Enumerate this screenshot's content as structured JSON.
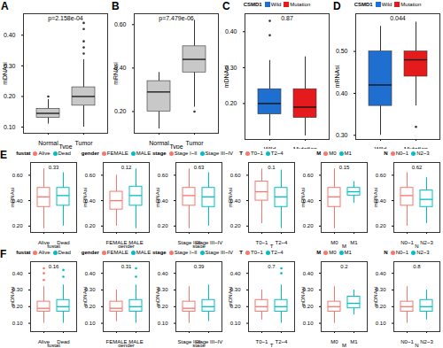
{
  "chart_data": [
    {
      "panel": "A",
      "type": "boxplot",
      "x_label": "Type",
      "y_label": "mDNAsi",
      "categories": [
        "Normal",
        "Tumor"
      ],
      "colors": [
        "#C8C8C8",
        "#C8C8C8"
      ],
      "p_label": "p=2.158e-04",
      "ylim": [
        0.08,
        0.47
      ],
      "yticks": [
        0.1,
        0.2,
        0.3,
        0.4
      ],
      "boxes": [
        {
          "min": 0.11,
          "q1": 0.13,
          "median": 0.145,
          "q3": 0.16,
          "max": 0.19,
          "outliers": [
            0.2
          ]
        },
        {
          "min": 0.1,
          "q1": 0.17,
          "median": 0.2,
          "q3": 0.23,
          "max": 0.32,
          "outliers": [
            0.34,
            0.36,
            0.38,
            0.42,
            0.44
          ]
        }
      ]
    },
    {
      "panel": "B",
      "type": "boxplot",
      "x_label": "Type",
      "y_label": "mRNAsi",
      "categories": [
        "Normal",
        "Tumor"
      ],
      "colors": [
        "#C8C8C8",
        "#C8C8C8"
      ],
      "p_label": "p=7.479e-06",
      "ylim": [
        0.1,
        0.65
      ],
      "yticks": [
        0.2,
        0.4,
        0.6
      ],
      "boxes": [
        {
          "min": 0.12,
          "q1": 0.2,
          "median": 0.29,
          "q3": 0.34,
          "max": 0.38,
          "outliers": []
        },
        {
          "min": 0.22,
          "q1": 0.38,
          "median": 0.44,
          "q3": 0.5,
          "max": 0.62,
          "outliers": [
            0.2
          ]
        }
      ]
    },
    {
      "panel": "C",
      "type": "boxplot",
      "y_label": "mDNAsi",
      "legend_title": "CSMD1",
      "legend": "top",
      "categories": [
        "Wild",
        "Mutation"
      ],
      "colors": [
        "#1F6FD0",
        "#E41A1C"
      ],
      "p_label": "0.87",
      "ylim": [
        0.1,
        0.45
      ],
      "yticks": [
        0.2,
        0.3,
        0.4
      ],
      "boxes": [
        {
          "min": 0.11,
          "q1": 0.17,
          "median": 0.2,
          "q3": 0.24,
          "max": 0.32,
          "outliers": [
            0.39,
            0.43
          ]
        },
        {
          "min": 0.11,
          "q1": 0.16,
          "median": 0.19,
          "q3": 0.24,
          "max": 0.33,
          "outliers": []
        }
      ]
    },
    {
      "panel": "D",
      "type": "boxplot",
      "y_label": "mRNAsi",
      "legend_title": "CSMD1",
      "legend": "top",
      "categories": [
        "Wild",
        "Mutation"
      ],
      "colors": [
        "#1F6FD0",
        "#E41A1C"
      ],
      "p_label": "0.044",
      "ylim": [
        0.29,
        0.59
      ],
      "yticks": [
        0.3,
        0.4,
        0.5
      ],
      "boxes": [
        {
          "min": 0.3,
          "q1": 0.37,
          "median": 0.42,
          "q3": 0.5,
          "max": 0.56,
          "outliers": []
        },
        {
          "min": 0.37,
          "q1": 0.44,
          "median": 0.48,
          "q3": 0.5,
          "max": 0.57,
          "outliers": [
            0.32
          ]
        }
      ]
    },
    {
      "panel": "E",
      "type": "boxplot",
      "x_label": "fustat",
      "y_label": "mRNAsi",
      "legend_title": "fustat",
      "legend": "top",
      "categories": [
        "Alive",
        "Dead"
      ],
      "colors": [
        "#F8766D",
        "#00BFC4"
      ],
      "p_label": "0.33",
      "ylim": [
        0.15,
        0.7
      ],
      "yticks": [
        0.2,
        0.4,
        0.6
      ],
      "boxes": [
        {
          "min": 0.18,
          "q1": 0.35,
          "median": 0.43,
          "q3": 0.5,
          "max": 0.65,
          "outliers": []
        },
        {
          "min": 0.2,
          "q1": 0.36,
          "median": 0.44,
          "q3": 0.5,
          "max": 0.62,
          "outliers": []
        }
      ]
    },
    {
      "type": "boxplot",
      "x_label": "gender",
      "y_label": "mRNAsi",
      "legend_title": "gender",
      "legend": "top",
      "categories": [
        "FEMALE",
        "MALE"
      ],
      "colors": [
        "#F8766D",
        "#00BFC4"
      ],
      "p_label": "0.12",
      "ylim": [
        0.15,
        0.7
      ],
      "yticks": [
        0.2,
        0.4,
        0.6
      ],
      "boxes": [
        {
          "min": 0.2,
          "q1": 0.33,
          "median": 0.4,
          "q3": 0.47,
          "max": 0.6,
          "outliers": []
        },
        {
          "min": 0.18,
          "q1": 0.36,
          "median": 0.44,
          "q3": 0.51,
          "max": 0.65,
          "outliers": []
        }
      ]
    },
    {
      "type": "boxplot",
      "x_label": "stage",
      "y_label": "mRNAsi",
      "legend_title": "stage",
      "legend": "top",
      "categories": [
        "Stage I~II",
        "Stage III~IV"
      ],
      "colors": [
        "#F8766D",
        "#00BFC4"
      ],
      "p_label": "0.63",
      "ylim": [
        0.15,
        0.7
      ],
      "yticks": [
        0.2,
        0.4,
        0.6
      ],
      "boxes": [
        {
          "min": 0.18,
          "q1": 0.36,
          "median": 0.44,
          "q3": 0.5,
          "max": 0.65,
          "outliers": []
        },
        {
          "min": 0.2,
          "q1": 0.35,
          "median": 0.43,
          "q3": 0.5,
          "max": 0.62,
          "outliers": []
        }
      ]
    },
    {
      "type": "boxplot",
      "x_label": "T",
      "y_label": "mRNAsi",
      "legend_title": "T",
      "legend": "top",
      "categories": [
        "T0~1",
        "T2~4"
      ],
      "colors": [
        "#F8766D",
        "#00BFC4"
      ],
      "p_label": "0.1",
      "ylim": [
        0.15,
        0.7
      ],
      "yticks": [
        0.2,
        0.4,
        0.6
      ],
      "boxes": [
        {
          "min": 0.22,
          "q1": 0.4,
          "median": 0.47,
          "q3": 0.55,
          "max": 0.65,
          "outliers": []
        },
        {
          "min": 0.18,
          "q1": 0.35,
          "median": 0.43,
          "q3": 0.5,
          "max": 0.64,
          "outliers": []
        }
      ]
    },
    {
      "type": "boxplot",
      "x_label": "M",
      "y_label": "mRNAsi",
      "legend_title": "M",
      "legend": "top",
      "categories": [
        "M0",
        "M1"
      ],
      "colors": [
        "#F8766D",
        "#00BFC4"
      ],
      "p_label": "0.15",
      "ylim": [
        0.15,
        0.7
      ],
      "yticks": [
        0.2,
        0.4,
        0.6
      ],
      "boxes": [
        {
          "min": 0.18,
          "q1": 0.35,
          "median": 0.43,
          "q3": 0.5,
          "max": 0.65,
          "outliers": []
        },
        {
          "min": 0.38,
          "q1": 0.44,
          "median": 0.47,
          "q3": 0.5,
          "max": 0.55,
          "outliers": []
        }
      ]
    },
    {
      "type": "boxplot",
      "x_label": "N",
      "y_label": "mRNAsi",
      "legend_title": "N",
      "legend": "top",
      "categories": [
        "N0~1",
        "N2~3"
      ],
      "colors": [
        "#F8766D",
        "#00BFC4"
      ],
      "p_label": "0.62",
      "ylim": [
        0.15,
        0.7
      ],
      "yticks": [
        0.2,
        0.4,
        0.6
      ],
      "boxes": [
        {
          "min": 0.2,
          "q1": 0.36,
          "median": 0.44,
          "q3": 0.5,
          "max": 0.62,
          "outliers": []
        },
        {
          "min": 0.22,
          "q1": 0.35,
          "median": 0.41,
          "q3": 0.48,
          "max": 0.58,
          "outliers": []
        }
      ]
    },
    {
      "panel": "F",
      "type": "boxplot",
      "x_label": "fustat",
      "y_label": "mDNAsi",
      "legend_title": "fustat",
      "legend": "top",
      "categories": [
        "Alive",
        "Dead"
      ],
      "colors": [
        "#F8766D",
        "#00BFC4"
      ],
      "p_label": "0.16",
      "ylim": [
        0.05,
        0.47
      ],
      "yticks": [
        0.1,
        0.2,
        0.3,
        0.4
      ],
      "boxes": [
        {
          "min": 0.1,
          "q1": 0.17,
          "median": 0.19,
          "q3": 0.23,
          "max": 0.32,
          "outliers": [
            0.36,
            0.4,
            0.43
          ]
        },
        {
          "min": 0.1,
          "q1": 0.17,
          "median": 0.2,
          "q3": 0.24,
          "max": 0.33,
          "outliers": [
            0.38,
            0.42
          ]
        }
      ]
    },
    {
      "type": "boxplot",
      "x_label": "gender",
      "y_label": "mDNAsi",
      "legend_title": "gender",
      "legend": "top",
      "categories": [
        "FEMALE",
        "MALE"
      ],
      "colors": [
        "#F8766D",
        "#00BFC4"
      ],
      "p_label": "0.31",
      "ylim": [
        0.05,
        0.47
      ],
      "yticks": [
        0.1,
        0.2,
        0.3,
        0.4
      ],
      "boxes": [
        {
          "min": 0.11,
          "q1": 0.17,
          "median": 0.19,
          "q3": 0.23,
          "max": 0.3,
          "outliers": []
        },
        {
          "min": 0.1,
          "q1": 0.17,
          "median": 0.2,
          "q3": 0.24,
          "max": 0.33,
          "outliers": [
            0.38,
            0.43
          ]
        }
      ]
    },
    {
      "type": "boxplot",
      "x_label": "stage",
      "y_label": "mDNAsi",
      "legend_title": "stage",
      "legend": "top",
      "categories": [
        "Stage I~II",
        "Stage III~IV"
      ],
      "colors": [
        "#F8766D",
        "#00BFC4"
      ],
      "p_label": "0.39",
      "ylim": [
        0.05,
        0.47
      ],
      "yticks": [
        0.1,
        0.2,
        0.3,
        0.4
      ],
      "boxes": [
        {
          "min": 0.1,
          "q1": 0.17,
          "median": 0.19,
          "q3": 0.23,
          "max": 0.32,
          "outliers": []
        },
        {
          "min": 0.11,
          "q1": 0.17,
          "median": 0.2,
          "q3": 0.24,
          "max": 0.33,
          "outliers": []
        }
      ]
    },
    {
      "type": "boxplot",
      "x_label": "T",
      "y_label": "mDNAsi",
      "legend_title": "T",
      "legend": "top",
      "categories": [
        "T0~1",
        "T2~4"
      ],
      "colors": [
        "#F8766D",
        "#00BFC4"
      ],
      "p_label": "0.7",
      "ylim": [
        0.05,
        0.47
      ],
      "yticks": [
        0.1,
        0.2,
        0.3,
        0.4
      ],
      "boxes": [
        {
          "min": 0.12,
          "q1": 0.17,
          "median": 0.2,
          "q3": 0.24,
          "max": 0.3,
          "outliers": []
        },
        {
          "min": 0.1,
          "q1": 0.17,
          "median": 0.2,
          "q3": 0.24,
          "max": 0.33,
          "outliers": [
            0.4,
            0.43
          ]
        }
      ]
    },
    {
      "type": "boxplot",
      "x_label": "M",
      "y_label": "mDNAsi",
      "legend_title": "M",
      "legend": "top",
      "categories": [
        "M0",
        "M1"
      ],
      "colors": [
        "#F8766D",
        "#00BFC4"
      ],
      "p_label": "0.2",
      "ylim": [
        0.05,
        0.47
      ],
      "yticks": [
        0.1,
        0.2,
        0.3,
        0.4
      ],
      "boxes": [
        {
          "min": 0.1,
          "q1": 0.17,
          "median": 0.2,
          "q3": 0.23,
          "max": 0.32,
          "outliers": []
        },
        {
          "min": 0.15,
          "q1": 0.19,
          "median": 0.22,
          "q3": 0.26,
          "max": 0.3,
          "outliers": []
        }
      ]
    },
    {
      "type": "boxplot",
      "x_label": "N",
      "y_label": "mDNAsi",
      "legend_title": "N",
      "legend": "top",
      "categories": [
        "N0~1",
        "N2~3"
      ],
      "colors": [
        "#F8766D",
        "#00BFC4"
      ],
      "p_label": "0.8",
      "ylim": [
        0.05,
        0.47
      ],
      "yticks": [
        0.1,
        0.2,
        0.3,
        0.4
      ],
      "boxes": [
        {
          "min": 0.1,
          "q1": 0.17,
          "median": 0.2,
          "q3": 0.23,
          "max": 0.32,
          "outliers": []
        },
        {
          "min": 0.12,
          "q1": 0.17,
          "median": 0.2,
          "q3": 0.24,
          "max": 0.3,
          "outliers": []
        }
      ]
    }
  ]
}
